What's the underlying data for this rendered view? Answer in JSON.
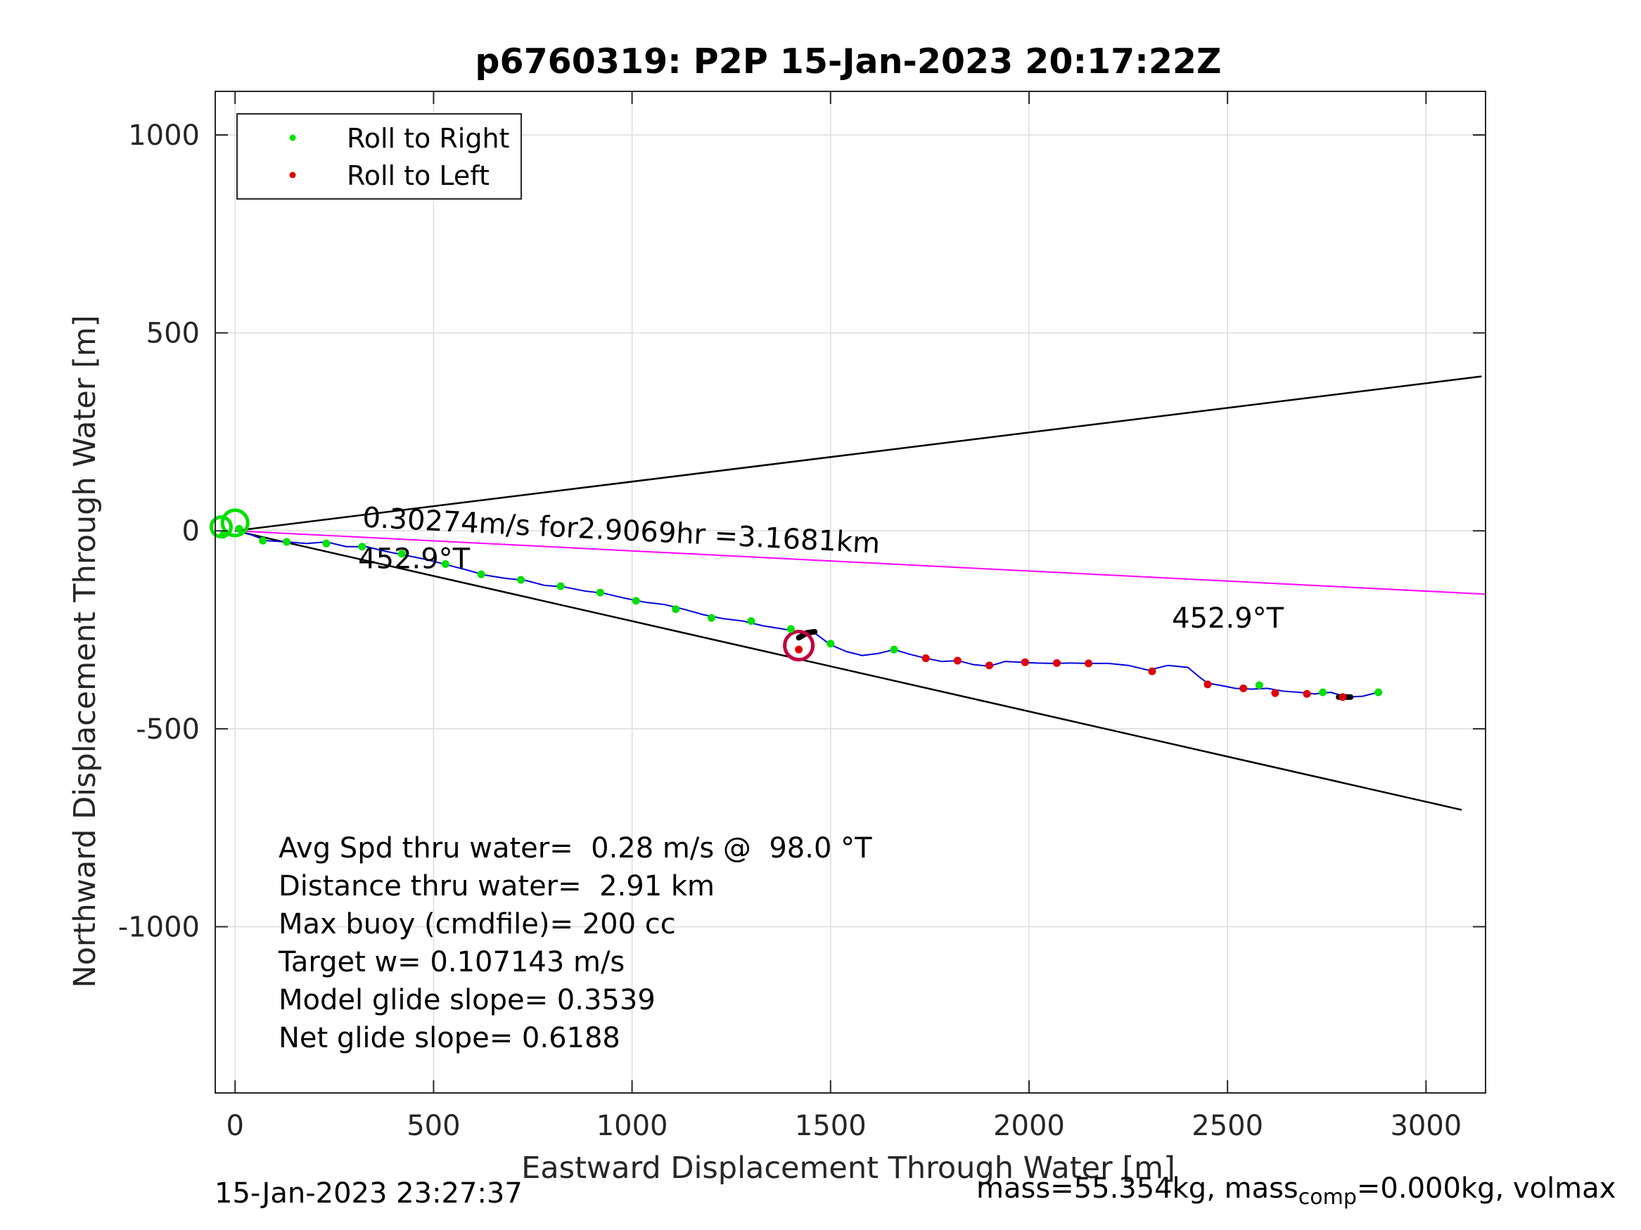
{
  "chart_data": {
    "type": "line",
    "title": "p6760319: P2P 15-Jan-2023 20:17:22Z",
    "xlabel": "Eastward Displacement Through Water [m]",
    "ylabel": "Northward Displacement Through Water [m]",
    "xlim": [
      -50,
      3150
    ],
    "ylim": [
      -1420,
      1110
    ],
    "xticks": [
      0,
      500,
      1000,
      1500,
      2000,
      2500,
      3000
    ],
    "yticks": [
      1000,
      500,
      0,
      -500,
      -1000
    ],
    "xtick_labels": [
      "0",
      "500",
      "1000",
      "1500",
      "2000",
      "2500",
      "3000"
    ],
    "ytick_labels": [
      "1000",
      "500",
      "0",
      "-500",
      "-1000"
    ],
    "grid": true,
    "legend_position": "top-left",
    "legend": [
      {
        "label": "Roll to Right",
        "color": "#00e000"
      },
      {
        "label": "Roll to Left",
        "color": "#e00000"
      }
    ],
    "series": [
      {
        "name": "track",
        "color": "#0000dd",
        "x": [
          0,
          40,
          80,
          130,
          180,
          230,
          280,
          330,
          380,
          430,
          480,
          530,
          580,
          630,
          680,
          730,
          780,
          830,
          880,
          930,
          980,
          1030,
          1080,
          1130,
          1180,
          1230,
          1280,
          1330,
          1380,
          1420,
          1440,
          1460,
          1500,
          1540,
          1580,
          1620,
          1660,
          1700,
          1740,
          1780,
          1820,
          1860,
          1900,
          1940,
          1980,
          2020,
          2060,
          2100,
          2150,
          2200,
          2250,
          2300,
          2350,
          2400,
          2430,
          2450,
          2480,
          2520,
          2560,
          2600,
          2640,
          2680,
          2720,
          2760,
          2800,
          2840,
          2880
        ],
        "y": [
          0,
          -10,
          -25,
          -28,
          -32,
          -28,
          -40,
          -40,
          -52,
          -62,
          -72,
          -85,
          -98,
          -112,
          -120,
          -125,
          -138,
          -142,
          -152,
          -158,
          -170,
          -180,
          -186,
          -198,
          -212,
          -222,
          -228,
          -240,
          -248,
          -255,
          -258,
          -258,
          -288,
          -305,
          -315,
          -310,
          -300,
          -312,
          -322,
          -330,
          -328,
          -338,
          -342,
          -330,
          -332,
          -334,
          -335,
          -334,
          -335,
          -335,
          -340,
          -352,
          -340,
          -345,
          -370,
          -385,
          -390,
          -398,
          -400,
          -398,
          -405,
          -408,
          -412,
          -408,
          -420,
          -418,
          -408
        ]
      },
      {
        "name": "roll-right",
        "color": "#00e000",
        "x": [
          -30,
          10,
          70,
          130,
          230,
          320,
          420,
          530,
          620,
          720,
          820,
          920,
          1010,
          1110,
          1200,
          1300,
          1400,
          1500,
          1660,
          2580,
          2740,
          2880
        ],
        "y": [
          -10,
          5,
          -25,
          -28,
          -32,
          -40,
          -58,
          -84,
          -110,
          -124,
          -140,
          -156,
          -177,
          -198,
          -220,
          -228,
          -248,
          -285,
          -300,
          -390,
          -408,
          -408
        ]
      },
      {
        "name": "roll-left",
        "color": "#e00000",
        "x": [
          1420,
          1740,
          1820,
          1900,
          1990,
          2070,
          2150,
          2310,
          2450,
          2540,
          2620,
          2700,
          2790
        ],
        "y": [
          -300,
          -322,
          -328,
          -340,
          -332,
          -334,
          -335,
          -355,
          -388,
          -398,
          -410,
          -412,
          -420
        ]
      }
    ],
    "reference_lines": [
      {
        "name": "upper",
        "color": "#000000",
        "x": [
          0,
          3140
        ],
        "y": [
          0,
          390
        ]
      },
      {
        "name": "lower",
        "color": "#000000",
        "x": [
          0,
          3090
        ],
        "y": [
          0,
          -705
        ]
      },
      {
        "name": "mean",
        "color": "#ff00ff",
        "x": [
          0,
          3150
        ],
        "y": [
          0,
          -160
        ]
      }
    ],
    "markers": [
      {
        "name": "start-right-circle",
        "color": "#00e000",
        "x": 0,
        "y": 20,
        "r": 18
      },
      {
        "name": "start-left-circle",
        "color": "#00e000",
        "x": -35,
        "y": 10,
        "r": 14
      },
      {
        "name": "turn-arc",
        "color": "#c00040",
        "x": 1420,
        "y": -290,
        "r": 20
      }
    ],
    "black_segments": [
      {
        "name": "heavy-turn",
        "x": [
          1420,
          1440,
          1460
        ],
        "y": [
          -270,
          -258,
          -255
        ]
      },
      {
        "name": "end-dash",
        "x": [
          2780,
          2810
        ],
        "y": [
          -420,
          -420
        ]
      }
    ],
    "annotations": [
      {
        "name": "speed-annotation",
        "text": "0.30274m/s for2.9069hr =3.1681km",
        "x": 320,
        "y": 10,
        "rotate": 2.9
      },
      {
        "name": "heading-annotation-left",
        "text": "452.9°T",
        "x": 310,
        "y": -95,
        "rotate": 0
      },
      {
        "name": "heading-annotation-right",
        "text": "452.9°T",
        "x": 2360,
        "y": -245,
        "rotate": 0
      }
    ],
    "stats": [
      "Avg Spd thru water=  0.28 m/s @  98.0 °T",
      "Distance thru water=  2.91 km",
      "Max buoy (cmdfile)= 200 cc",
      "Target w= 0.107143 m/s",
      "Model glide slope= 0.3539",
      "Net glide slope= 0.6188"
    ]
  },
  "footer": {
    "timestamp": "15-Jan-2023 23:27:37",
    "mass_text": "mass=55.354kg, mass",
    "mass_sub": "comp",
    "mass_rest": "=0.000kg, volmax"
  }
}
